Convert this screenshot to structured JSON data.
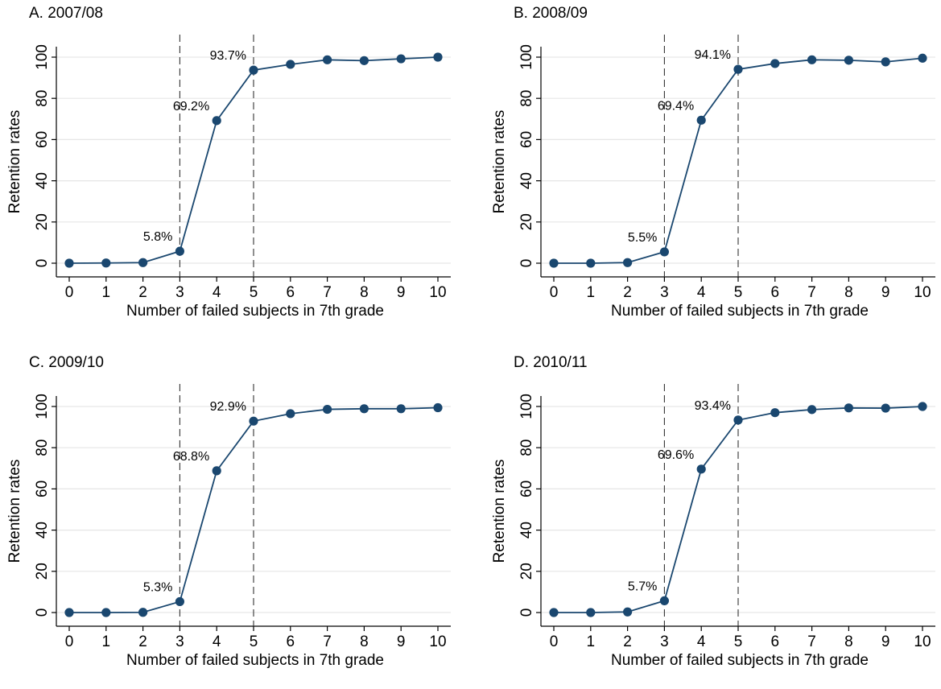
{
  "figure": {
    "colors": {
      "series": "#1a476f",
      "grid": "#e6e6e6",
      "axis": "#000000"
    }
  },
  "chart_data": [
    {
      "type": "line",
      "title": "A. 2007/08",
      "xlabel": "Number of failed subjects in 7th grade",
      "ylabel": "Retention rates",
      "x": [
        0,
        1,
        2,
        3,
        4,
        5,
        6,
        7,
        8,
        9,
        10
      ],
      "y": [
        0.0,
        0.1,
        0.3,
        5.8,
        69.2,
        93.7,
        96.5,
        98.7,
        98.3,
        99.2,
        100.0
      ],
      "xlim": [
        0,
        10
      ],
      "ylim": [
        0,
        100
      ],
      "xticks": [
        "0",
        "1",
        "2",
        "3",
        "4",
        "5",
        "6",
        "7",
        "8",
        "9",
        "10"
      ],
      "yticks": [
        "0",
        "20",
        "40",
        "60",
        "80",
        "100"
      ],
      "reference_lines_x": [
        3,
        5
      ],
      "annotations": [
        {
          "x": 3,
          "y": 5.8,
          "text": "5.8%"
        },
        {
          "x": 4,
          "y": 69.2,
          "text": "69.2%"
        },
        {
          "x": 5,
          "y": 93.7,
          "text": "93.7%"
        }
      ],
      "grid": true
    },
    {
      "type": "line",
      "title": "B. 2008/09",
      "xlabel": "Number of failed subjects in 7th grade",
      "ylabel": "Retention rates",
      "x": [
        0,
        1,
        2,
        3,
        4,
        5,
        6,
        7,
        8,
        9,
        10
      ],
      "y": [
        0.0,
        0.0,
        0.3,
        5.5,
        69.4,
        94.1,
        96.9,
        98.7,
        98.5,
        97.7,
        99.5
      ],
      "xlim": [
        0,
        10
      ],
      "ylim": [
        0,
        100
      ],
      "xticks": [
        "0",
        "1",
        "2",
        "3",
        "4",
        "5",
        "6",
        "7",
        "8",
        "9",
        "10"
      ],
      "yticks": [
        "0",
        "20",
        "40",
        "60",
        "80",
        "100"
      ],
      "reference_lines_x": [
        3,
        5
      ],
      "annotations": [
        {
          "x": 3,
          "y": 5.5,
          "text": "5.5%"
        },
        {
          "x": 4,
          "y": 69.4,
          "text": "69.4%"
        },
        {
          "x": 5,
          "y": 94.1,
          "text": "94.1%"
        }
      ],
      "grid": true
    },
    {
      "type": "line",
      "title": "C. 2009/10",
      "xlabel": "Number of failed subjects in 7th grade",
      "ylabel": "Retention rates",
      "x": [
        0,
        1,
        2,
        3,
        4,
        5,
        6,
        7,
        8,
        9,
        10
      ],
      "y": [
        0.0,
        0.0,
        0.1,
        5.3,
        68.8,
        92.9,
        96.5,
        98.6,
        98.9,
        98.9,
        99.4
      ],
      "xlim": [
        0,
        10
      ],
      "ylim": [
        0,
        100
      ],
      "xticks": [
        "0",
        "1",
        "2",
        "3",
        "4",
        "5",
        "6",
        "7",
        "8",
        "9",
        "10"
      ],
      "yticks": [
        "0",
        "20",
        "40",
        "60",
        "80",
        "100"
      ],
      "reference_lines_x": [
        3,
        5
      ],
      "annotations": [
        {
          "x": 3,
          "y": 5.3,
          "text": "5.3%"
        },
        {
          "x": 4,
          "y": 68.8,
          "text": "68.8%"
        },
        {
          "x": 5,
          "y": 92.9,
          "text": "92.9%"
        }
      ],
      "grid": true
    },
    {
      "type": "line",
      "title": "D. 2010/11",
      "xlabel": "Number of failed subjects in 7th grade",
      "ylabel": "Retention rates",
      "x": [
        0,
        1,
        2,
        3,
        4,
        5,
        6,
        7,
        8,
        9,
        10
      ],
      "y": [
        0.0,
        0.0,
        0.3,
        5.7,
        69.6,
        93.4,
        97.0,
        98.5,
        99.3,
        99.2,
        100.0
      ],
      "xlim": [
        0,
        10
      ],
      "ylim": [
        0,
        100
      ],
      "xticks": [
        "0",
        "1",
        "2",
        "3",
        "4",
        "5",
        "6",
        "7",
        "8",
        "9",
        "10"
      ],
      "yticks": [
        "0",
        "20",
        "40",
        "60",
        "80",
        "100"
      ],
      "reference_lines_x": [
        3,
        5
      ],
      "annotations": [
        {
          "x": 3,
          "y": 5.7,
          "text": "5.7%"
        },
        {
          "x": 4,
          "y": 69.6,
          "text": "69.6%"
        },
        {
          "x": 5,
          "y": 93.4,
          "text": "93.4%"
        }
      ],
      "grid": true
    }
  ]
}
